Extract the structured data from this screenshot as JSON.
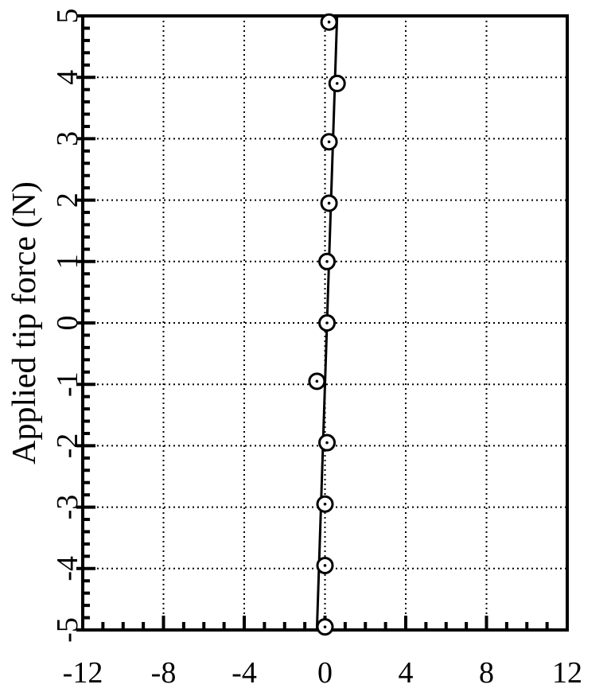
{
  "chart_data": {
    "type": "scatter",
    "title": "",
    "xlabel": "",
    "ylabel": "Applied tip force (N)",
    "xlim": [
      -12,
      12
    ],
    "ylim": [
      -5,
      5
    ],
    "x_ticks": [
      -12,
      -8,
      -4,
      0,
      4,
      8,
      12
    ],
    "x_tick_labels": [
      "-12",
      "-8",
      "-4",
      "0",
      "4",
      "8",
      "12"
    ],
    "y_ticks": [
      -5,
      -4,
      -3,
      -2,
      -1,
      0,
      1,
      2,
      3,
      4,
      5
    ],
    "y_tick_labels": [
      "-5",
      "-4",
      "-3",
      "-2",
      "-1",
      "0",
      "1",
      "2",
      "3",
      "4",
      "5"
    ],
    "grid": true,
    "series": [
      {
        "x": [
          0.0,
          0.0,
          0.0,
          0.1,
          -0.4,
          0.1,
          0.1,
          0.2,
          0.2,
          0.6,
          0.2
        ],
        "y": [
          -4.95,
          -3.95,
          -2.95,
          -1.95,
          -0.95,
          0.0,
          1.0,
          1.95,
          2.95,
          3.9,
          4.9
        ]
      }
    ],
    "fit_line": {
      "x": [
        -0.4,
        0.6
      ],
      "y": [
        -5,
        5
      ]
    },
    "colors": {
      "axis": "#000000",
      "grid": "#000000",
      "marker_fill": "#ffffff"
    }
  }
}
